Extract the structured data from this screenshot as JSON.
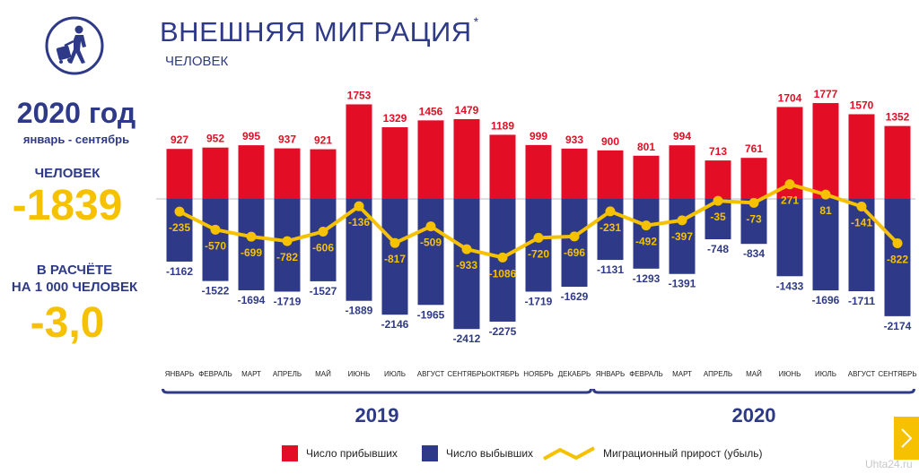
{
  "header": {
    "title": "ВНЕШНЯЯ МИГРАЦИЯ",
    "title_mark": "*",
    "subtitle": "ЧЕЛОВЕК"
  },
  "logo": {
    "icon": "traveler-with-suitcase-icon",
    "color": "#2e3a87"
  },
  "summary": {
    "year_heading": "2020 год",
    "period": "январь - сентябрь",
    "people_label": "ЧЕЛОВЕК",
    "total": "-1839",
    "per_thousand_label_line1": "В РАСЧЁТЕ",
    "per_thousand_label_line2": "НА 1 000 ЧЕЛОВЕК",
    "per_thousand_value": "-3,0"
  },
  "legend": {
    "arrived": "Число прибывших",
    "departed": "Число выбывших",
    "growth": "Миграционный прирост  (убыль)"
  },
  "colors": {
    "arrived": "#e30e26",
    "departed": "#2e3a87",
    "growth": "#f5c100",
    "text_dark": "#2e3a87"
  },
  "watermark": "Uhta24.ru",
  "chart_data": {
    "type": "bar",
    "categories": [
      "ЯНВАРЬ",
      "ФЕВРАЛЬ",
      "МАРТ",
      "АПРЕЛЬ",
      "МАЙ",
      "ИЮНЬ",
      "ИЮЛЬ",
      "АВГУСТ",
      "СЕНТЯБРЬ",
      "ОКТЯБРЬ",
      "НОЯБРЬ",
      "ДЕКАБРЬ",
      "ЯНВАРЬ",
      "ФЕВРАЛЬ",
      "МАРТ",
      "АПРЕЛЬ",
      "МАЙ",
      "ИЮНЬ",
      "ИЮЛЬ",
      "АВГУСТ",
      "СЕНТЯБРЬ"
    ],
    "groups": [
      {
        "label": "2019",
        "start": 0,
        "end": 11
      },
      {
        "label": "2020",
        "start": 12,
        "end": 20
      }
    ],
    "series": [
      {
        "name": "Число прибывших",
        "values": [
          927,
          952,
          995,
          937,
          921,
          1753,
          1329,
          1456,
          1479,
          1189,
          999,
          933,
          900,
          801,
          994,
          713,
          761,
          1704,
          1777,
          1570,
          1352
        ]
      },
      {
        "name": "Число выбывших",
        "values": [
          -1162,
          -1522,
          -1694,
          -1719,
          -1527,
          -1889,
          -2146,
          -1965,
          -2412,
          -2275,
          -1719,
          -1629,
          -1131,
          -1293,
          -1391,
          -748,
          -834,
          -1433,
          -1696,
          -1711,
          -2174
        ]
      },
      {
        "name": "Миграционный прирост  (убыль)",
        "type": "line",
        "values": [
          -235,
          -570,
          -699,
          -782,
          -606,
          -136,
          -817,
          -509,
          -933,
          -1086,
          -720,
          -696,
          -231,
          -492,
          -397,
          -35,
          -73,
          271,
          81,
          -141,
          -822
        ]
      }
    ],
    "ylim": [
      -2450,
      1800
    ],
    "grid": false
  }
}
